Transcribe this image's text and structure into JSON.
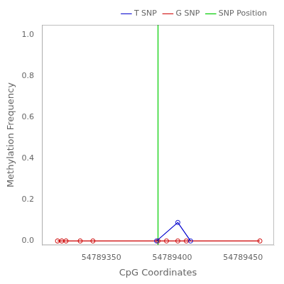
{
  "chart_data": {
    "type": "line",
    "xlabel": "CpG Coordinates",
    "ylabel": "Methylation Frequency",
    "xlim": [
      54789308,
      54789472
    ],
    "ylim": [
      -0.02,
      1.05
    ],
    "xticks": [
      54789350,
      54789400,
      54789450
    ],
    "yticks": [
      {
        "value": 0.0,
        "label": "0.0"
      },
      0.2,
      0.4,
      0.6,
      0.8,
      {
        "value": 1.0,
        "label": "1.0"
      }
    ],
    "grid": false,
    "legend": "upper right",
    "series": [
      {
        "name": "T SNP",
        "color": "#0000cd",
        "marker": "circle",
        "line_style": "solid",
        "x": [
          54789389,
          54789404,
          54789413
        ],
        "values": [
          0.0,
          0.09,
          0.0
        ]
      },
      {
        "name": "G SNP",
        "color": "#cd0000",
        "marker": "circle",
        "line_style": "solid",
        "x": [
          54789319,
          54789322,
          54789325,
          54789335,
          54789344,
          54789390,
          54789396,
          54789404,
          54789410,
          54789462
        ],
        "values": [
          0.0,
          0.0,
          0.0,
          0.0,
          0.0,
          0.0,
          0.0,
          0.0,
          0.0,
          0.0
        ]
      },
      {
        "name": "SNP Position",
        "type": "vline",
        "color": "#00cd00",
        "line_style": "solid",
        "x": [
          54789390
        ]
      }
    ]
  }
}
